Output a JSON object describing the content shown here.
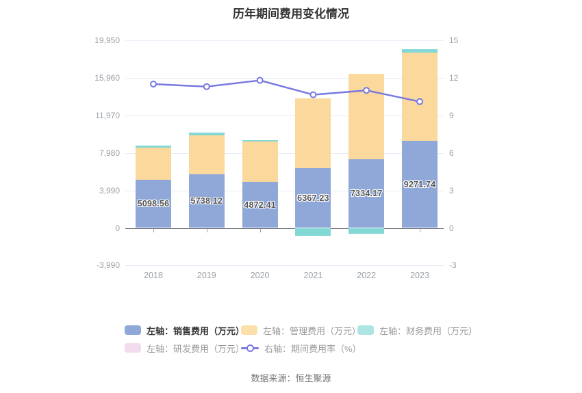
{
  "title": "历年期间费用变化情况",
  "source": "数据来源：恒生聚源",
  "legend": {
    "rows": [
      [
        {
          "key": "sales",
          "icon": "swatch",
          "color": "#8FA8D8",
          "label": "左轴：销售费用（万元）",
          "emphasis": true
        },
        {
          "key": "management",
          "icon": "swatch",
          "color": "#FBE0AC",
          "label": "左轴：管理费用（万元）",
          "emphasis": false
        },
        {
          "key": "finance",
          "icon": "swatch",
          "color": "#AEE5E2",
          "label": "左轴：财务费用（万元）",
          "emphasis": false
        }
      ],
      [
        {
          "key": "rd",
          "icon": "swatch",
          "color": "#F2DCEE",
          "label": "左轴：研发费用（万元）",
          "emphasis": false
        },
        {
          "key": "ratio",
          "icon": "line",
          "color": "#7879E0",
          "label": "右轴：期间费用率（%）",
          "emphasis": false
        }
      ]
    ]
  },
  "chart_data": {
    "type": "bar",
    "subtype": "stacked-bars-with-line-overlay",
    "title": "历年期间费用变化情况",
    "categories": [
      "2018",
      "2019",
      "2020",
      "2021",
      "2022",
      "2023"
    ],
    "series": [
      {
        "key": "sales",
        "name": "左轴：销售费用（万元）",
        "type": "bar",
        "axis": "left",
        "stack": true,
        "color": "#8FA8D8",
        "values": [
          5098.56,
          5738.12,
          4872.41,
          6367.23,
          7334.17,
          9271.74
        ],
        "value_labels": [
          "5098.56",
          "5738.12",
          "4872.41",
          "6367.23",
          "7334.17",
          "9271.74"
        ]
      },
      {
        "key": "management",
        "name": "左轴：管理费用（万元）",
        "type": "bar",
        "axis": "left",
        "stack": true,
        "color": "#FBD89B",
        "values": [
          3420,
          4130,
          4350,
          7400,
          9050,
          9390
        ]
      },
      {
        "key": "finance",
        "name": "左轴：财务费用（万元）",
        "type": "bar",
        "axis": "left",
        "stack": true,
        "color": "#82D8D4",
        "values": [
          270,
          240,
          150,
          -850,
          -630,
          340
        ]
      },
      {
        "key": "rd",
        "name": "左轴：研发费用（万元）",
        "type": "bar",
        "axis": "left",
        "stack": true,
        "color": "#F2DCEE",
        "values": [
          0,
          0,
          0,
          0,
          0,
          0
        ]
      },
      {
        "key": "ratio",
        "name": "右轴：期间费用率（%）",
        "type": "line",
        "axis": "right",
        "color": "#7879E0",
        "values": [
          11.5,
          11.3,
          11.8,
          10.65,
          11.0,
          10.1
        ]
      }
    ],
    "left_axis": {
      "ticks": [
        "19,950",
        "15,960",
        "11,970",
        "7,980",
        "3,990",
        "0",
        "-3,990"
      ],
      "tick_values": [
        19950,
        15960,
        11970,
        7980,
        3990,
        0,
        -3990
      ],
      "min": -3990,
      "max": 19950
    },
    "right_axis": {
      "ticks": [
        "15",
        "12",
        "9",
        "6",
        "3",
        "0",
        "-3"
      ],
      "tick_values": [
        15,
        12,
        9,
        6,
        3,
        0,
        -3
      ],
      "min": -3,
      "max": 15
    },
    "grid": true,
    "legend_position": "bottom"
  }
}
